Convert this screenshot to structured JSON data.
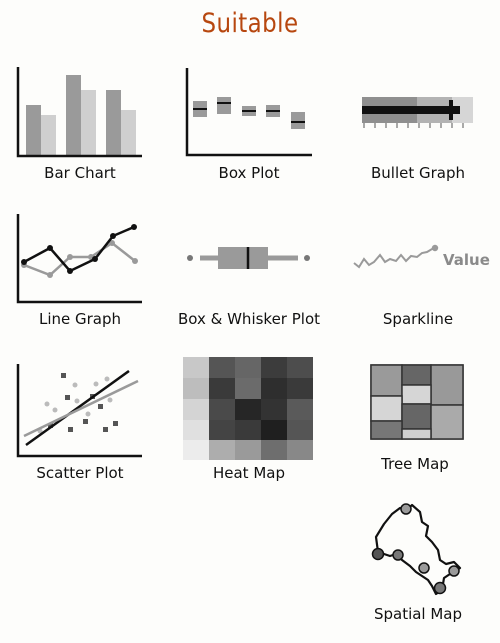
{
  "header": {
    "title": "Suitable"
  },
  "charts": [
    {
      "id": "bar-chart",
      "label": "Bar Chart"
    },
    {
      "id": "box-plot",
      "label": "Box Plot"
    },
    {
      "id": "bullet-graph",
      "label": "Bullet Graph"
    },
    {
      "id": "line-graph",
      "label": "Line Graph"
    },
    {
      "id": "box-whisker-plot",
      "label": "Box & Whisker Plot"
    },
    {
      "id": "sparkline",
      "label": "Sparkline",
      "value_text": "Value"
    },
    {
      "id": "scatter-plot",
      "label": "Scatter Plot"
    },
    {
      "id": "heat-map",
      "label": "Heat Map"
    },
    {
      "id": "tree-map",
      "label": "Tree Map"
    },
    {
      "id": "spatial-map",
      "label": "Spatial Map"
    }
  ],
  "colors": {
    "title": "#b7470f",
    "dark": "#111111",
    "mid": "#8c8c8c",
    "light": "#cfcfcf"
  }
}
